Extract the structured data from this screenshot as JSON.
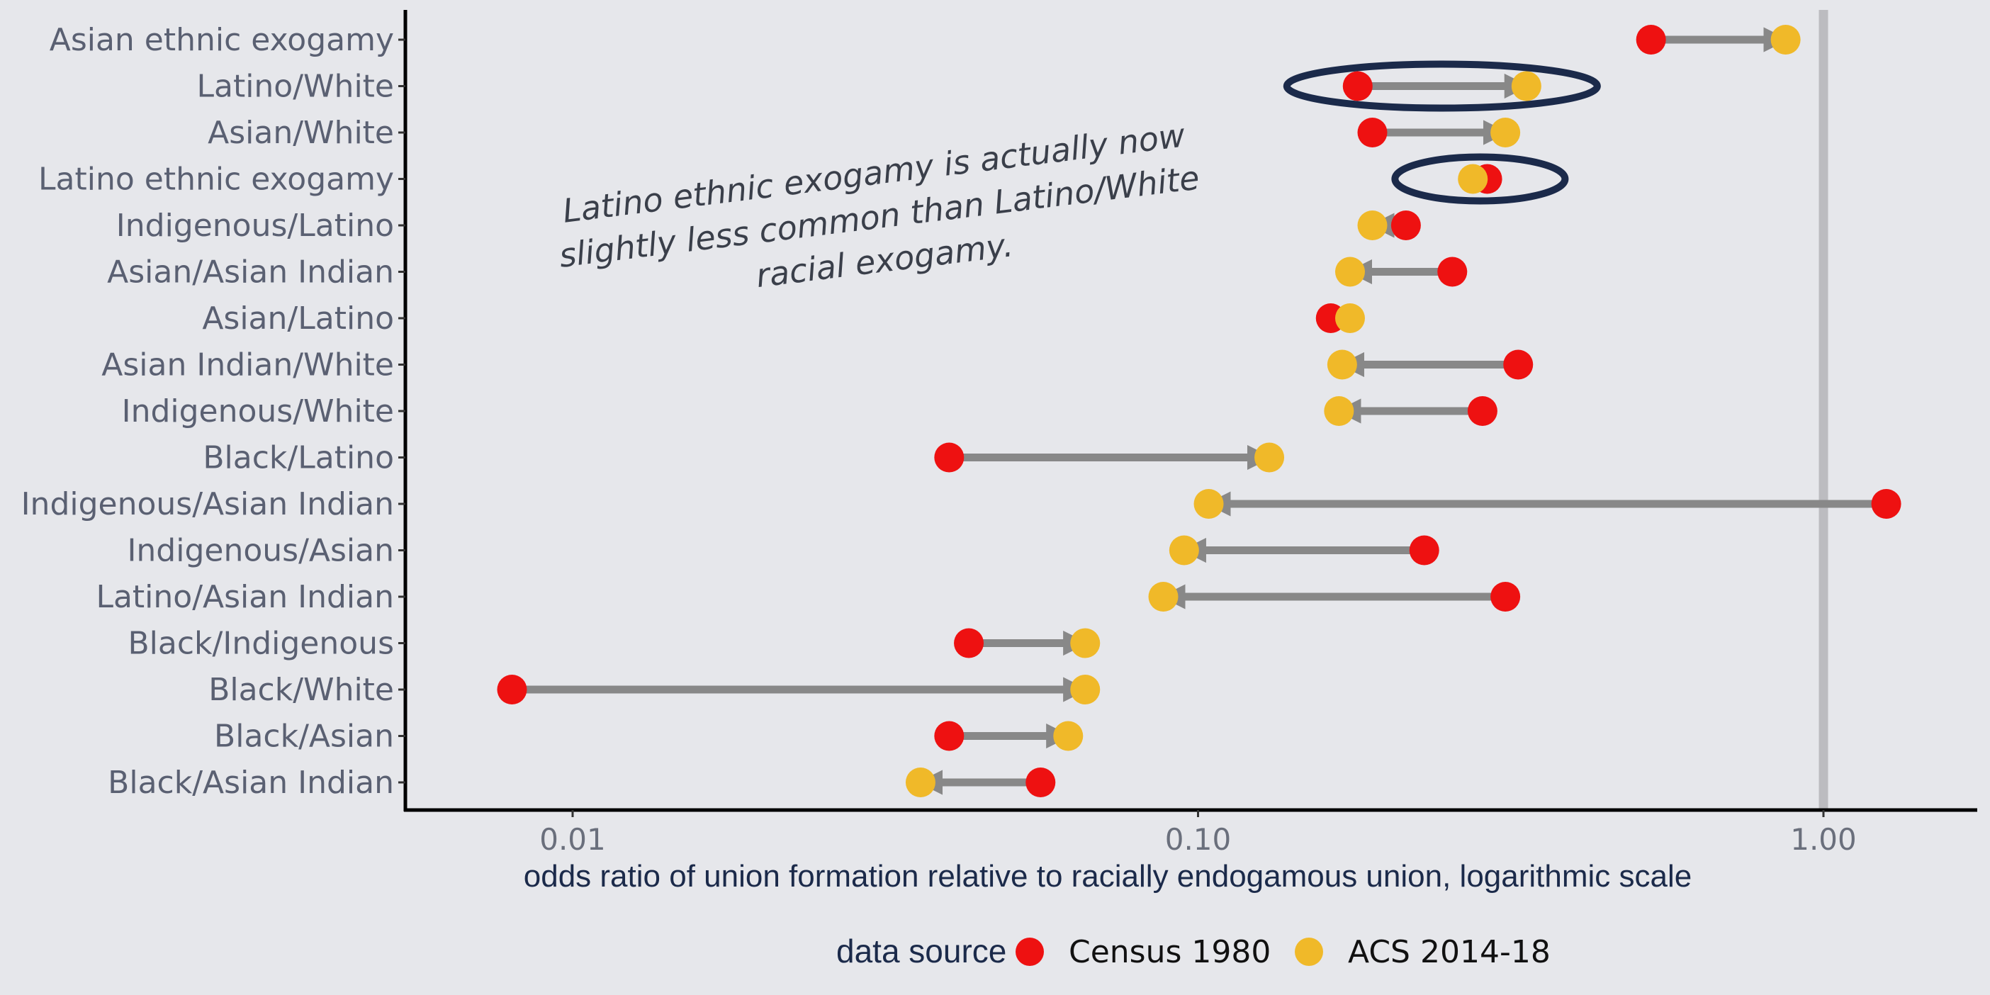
{
  "chart_data": {
    "type": "dumbbell",
    "log_scale": true,
    "xlim": [
      0.0053,
      1.6
    ],
    "xticks": [
      0.01,
      0.1,
      1
    ],
    "xtick_labels": [
      "0.01",
      "0.10",
      "1.00"
    ],
    "xlabel": "odds ratio of union formation relative to racially endogamous union, logarithmic scale",
    "ylabel": "",
    "title": "",
    "reference_line": 1,
    "grid": false,
    "legend": {
      "title": "data source",
      "position": "bottom",
      "entries": [
        {
          "name": "Census 1980",
          "color": "#ee1111"
        },
        {
          "name": "ACS 2014-18",
          "color": "#f0b929"
        }
      ]
    },
    "annotation": {
      "lines": [
        "Latino ethnic exogamy is actually now",
        "slightly less common than Latino/White",
        "racial exogamy."
      ],
      "highlighted": [
        "Latino/White",
        "Latino ethnic exogamy"
      ]
    },
    "categories": [
      "Asian ethnic exogamy",
      "Latino/White",
      "Asian/White",
      "Latino ethnic exogamy",
      "Indigenous/Latino",
      "Asian/Asian Indian",
      "Asian/Latino",
      "Asian Indian/White",
      "Indigenous/White",
      "Black/Latino",
      "Indigenous/Asian Indian",
      "Indigenous/Asian",
      "Latino/Asian Indian",
      "Black/Indigenous",
      "Black/White",
      "Black/Asian",
      "Black/Asian Indian"
    ],
    "series": [
      {
        "name": "Census 1980",
        "values": [
          0.53,
          0.18,
          0.19,
          0.29,
          0.215,
          0.255,
          0.163,
          0.325,
          0.285,
          0.04,
          1.26,
          0.23,
          0.31,
          0.043,
          0.008,
          0.04,
          0.056
        ]
      },
      {
        "name": "ACS 2014-18",
        "values": [
          0.87,
          0.335,
          0.31,
          0.275,
          0.19,
          0.175,
          0.175,
          0.17,
          0.168,
          0.13,
          0.104,
          0.095,
          0.088,
          0.066,
          0.066,
          0.062,
          0.036
        ]
      }
    ]
  }
}
